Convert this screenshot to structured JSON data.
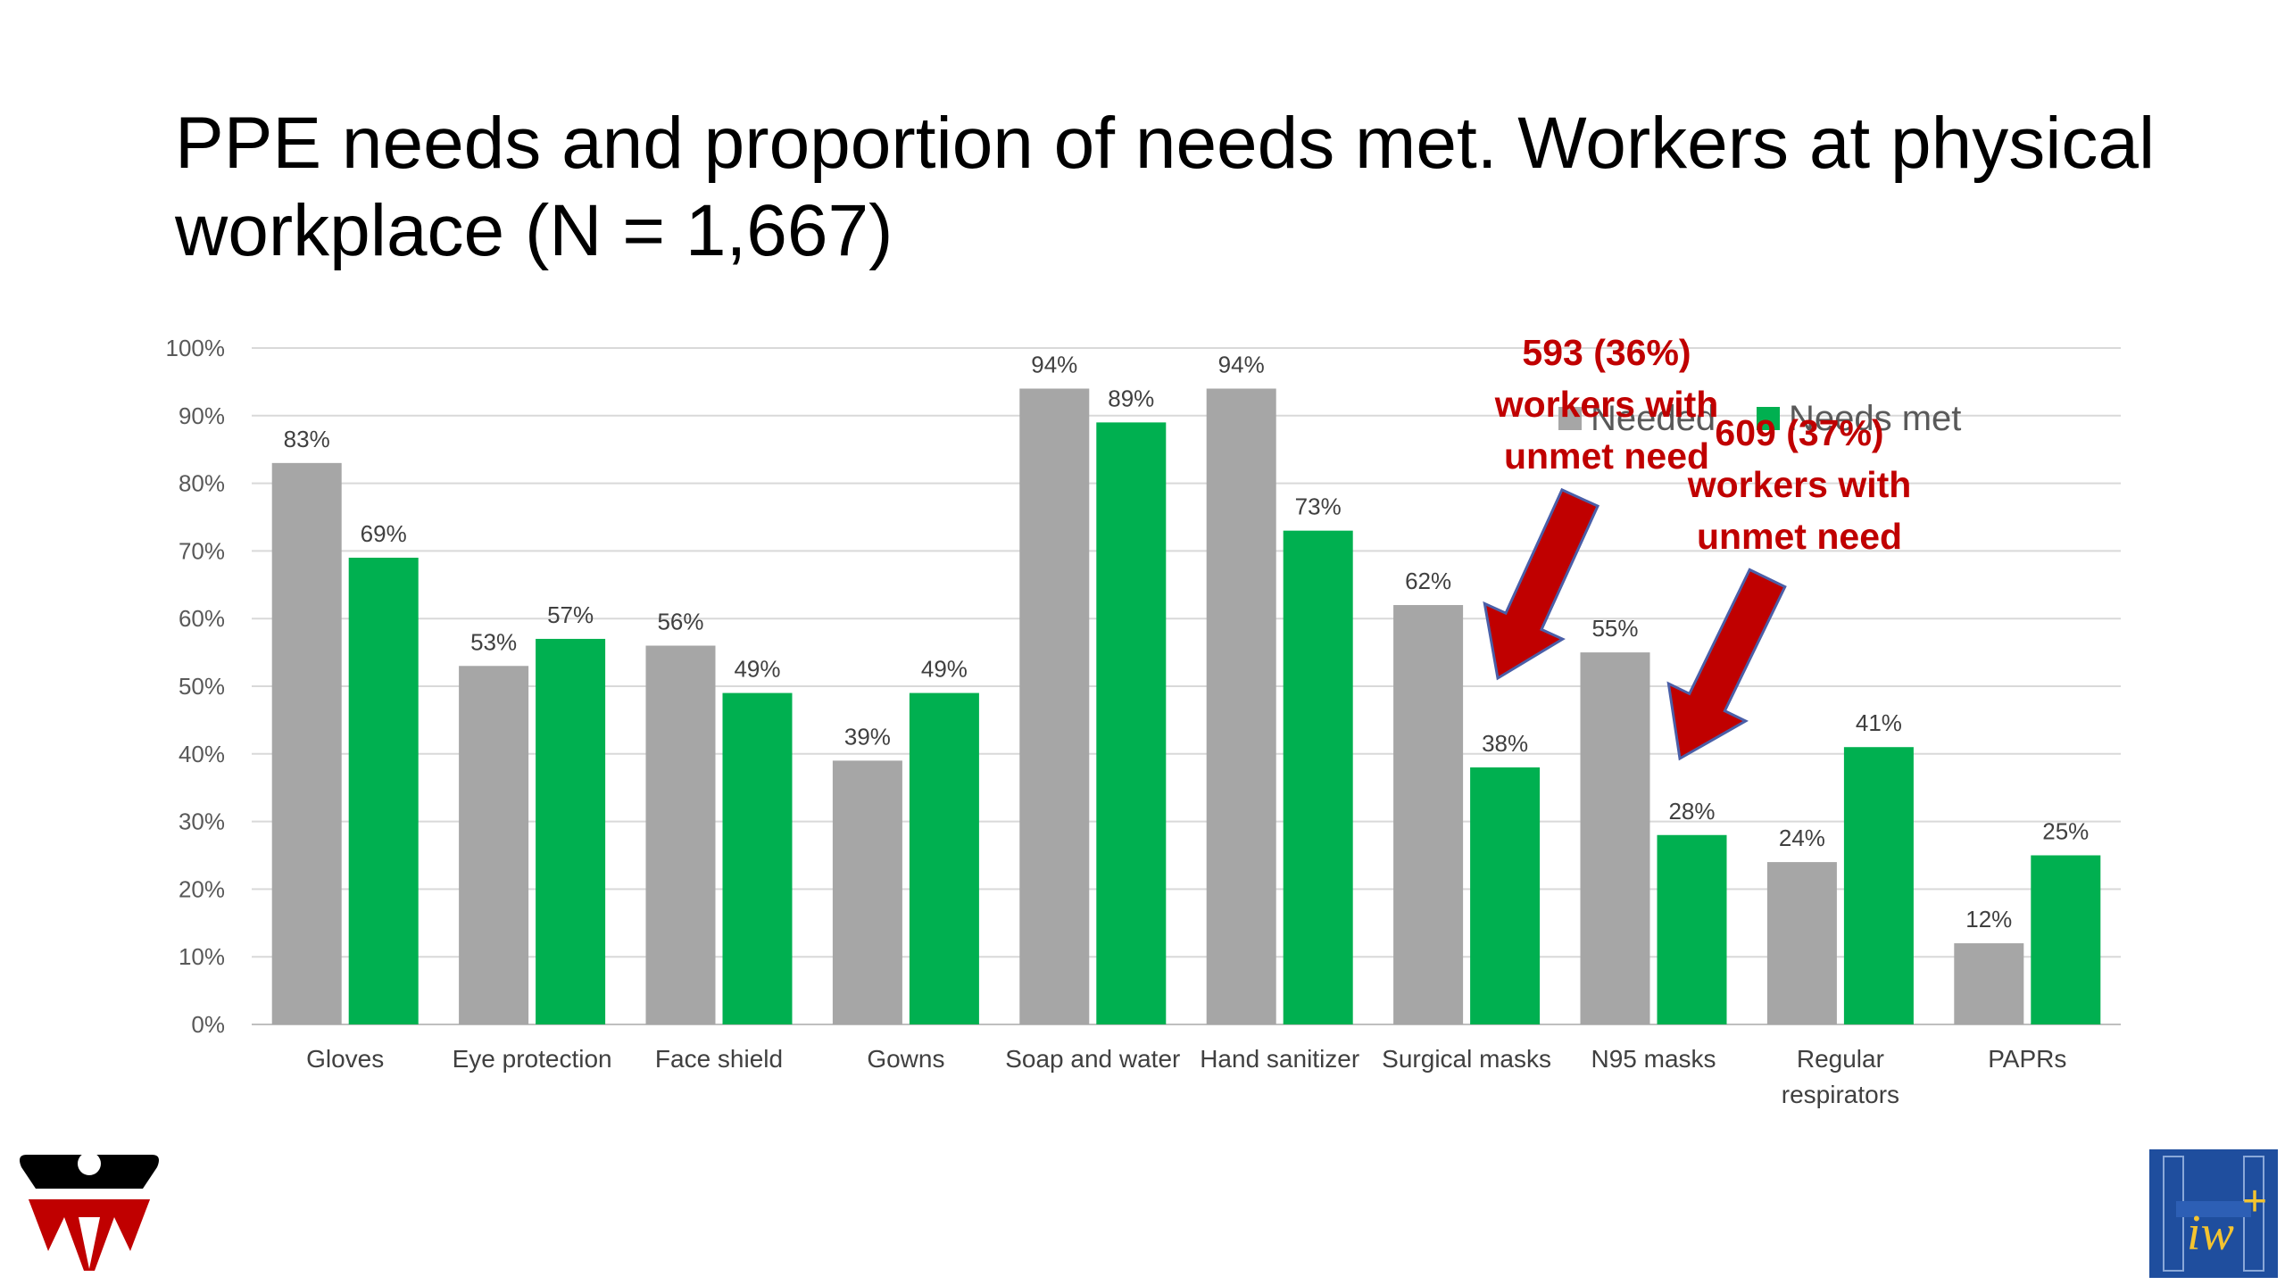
{
  "slide": {
    "title": "PPE needs and proportion of needs met. Workers at physical workplace (N = 1,667)"
  },
  "chart_data": {
    "type": "bar",
    "categories": [
      "Gloves",
      "Eye protection",
      "Face shield",
      "Gowns",
      "Soap and water",
      "Hand sanitizer",
      "Surgical masks",
      "N95 masks",
      "Regular respirators",
      "PAPRs"
    ],
    "series": [
      {
        "name": "Needed",
        "color": "#a6a6a6",
        "values": [
          83,
          53,
          56,
          39,
          94,
          94,
          62,
          55,
          24,
          12
        ],
        "labels": [
          "83%",
          "53%",
          "56%",
          "39%",
          "94%",
          "94%",
          "62%",
          "55%",
          "24%",
          "12%"
        ]
      },
      {
        "name": "Needs met",
        "color": "#00b050",
        "values": [
          69,
          57,
          49,
          49,
          89,
          73,
          38,
          28,
          41,
          25
        ],
        "labels": [
          "69%",
          "57%",
          "49%",
          "49%",
          "89%",
          "73%",
          "38%",
          "28%",
          "41%",
          "25%"
        ]
      }
    ],
    "yticks": [
      "0%",
      "10%",
      "20%",
      "30%",
      "40%",
      "50%",
      "60%",
      "70%",
      "80%",
      "90%",
      "100%"
    ],
    "ylim": [
      0,
      100
    ],
    "grid": true,
    "legend": "top-right",
    "annotations": [
      {
        "lines": [
          "593 (36%)",
          "workers with",
          "unmet need"
        ],
        "target": "Surgical masks",
        "color": "#c00000"
      },
      {
        "lines": [
          "609 (37%)",
          "workers with",
          "unmet need"
        ],
        "target": "N95 masks",
        "color": "#c00000"
      }
    ]
  },
  "logos": {
    "left": "red-black-shield-logo-icon",
    "right": "blue-h-iwh-logo-icon"
  }
}
